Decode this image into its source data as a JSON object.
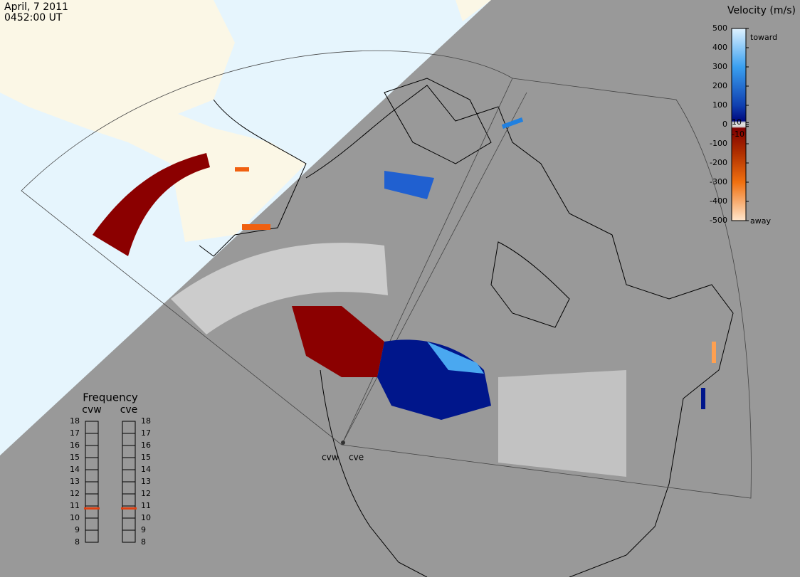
{
  "header": {
    "date": "April, 7 2011",
    "time": "0452:00 UT"
  },
  "velocity_scale": {
    "title": "Velocity (m/s)",
    "ticks": [
      500,
      400,
      300,
      200,
      100,
      10,
      0,
      -10,
      -100,
      -200,
      -300,
      -400,
      -500
    ],
    "toward": "toward",
    "away": "away"
  },
  "frequency": {
    "title": "Frequency",
    "radars": [
      "cvw",
      "cve"
    ],
    "ticks": [
      8,
      9,
      10,
      11,
      12,
      13,
      14,
      15,
      16,
      17,
      18
    ],
    "values": [
      10.8,
      10.8
    ]
  },
  "radar_sites": [
    "cvw",
    "cve"
  ]
}
